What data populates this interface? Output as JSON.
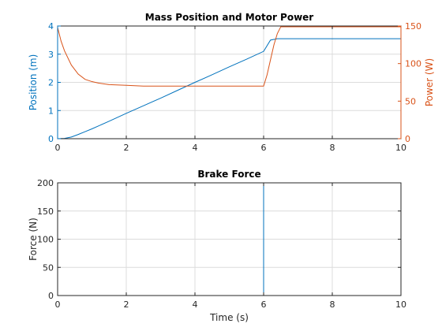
{
  "colors": {
    "blue": "#0072BD",
    "orange": "#D95319",
    "axis": "#262626",
    "grid": "#dcdcdc"
  },
  "chart_data": [
    {
      "type": "line",
      "title": "Mass Position and Motor Power",
      "xlabel": "",
      "ylabel": "Position (m)",
      "ylabel_right": "Power (W)",
      "xlim": [
        0,
        10
      ],
      "ylim": [
        0,
        4
      ],
      "ylim_right": [
        0,
        150
      ],
      "xticks": [
        "0",
        "2",
        "4",
        "6",
        "8",
        "10"
      ],
      "yticks": [
        "0",
        "1",
        "2",
        "3",
        "4"
      ],
      "yticks_right": [
        "0",
        "50",
        "100",
        "150"
      ],
      "grid": true,
      "series": [
        {
          "axis": "left",
          "color": "#0072BD",
          "x": [
            0,
            0.2,
            0.4,
            0.6,
            0.8,
            1.0,
            1.5,
            2.0,
            2.5,
            3.0,
            3.5,
            4.0,
            4.5,
            5.0,
            5.5,
            6.0,
            6.2,
            6.4,
            6.5,
            7,
            8,
            9,
            10
          ],
          "values": [
            0,
            0.01,
            0.06,
            0.15,
            0.25,
            0.35,
            0.62,
            0.9,
            1.17,
            1.44,
            1.72,
            2.0,
            2.27,
            2.55,
            2.82,
            3.1,
            3.5,
            3.55,
            3.55,
            3.55,
            3.55,
            3.55,
            3.55
          ]
        },
        {
          "axis": "right",
          "color": "#D95319",
          "x": [
            0,
            0.1,
            0.2,
            0.4,
            0.6,
            0.8,
            1.0,
            1.2,
            1.5,
            2.0,
            2.5,
            3.0,
            4.0,
            5.0,
            6.0,
            6.1,
            6.2,
            6.3,
            6.4,
            6.5,
            7,
            8,
            9,
            10
          ],
          "values": [
            148,
            130,
            117,
            98,
            86,
            79,
            76,
            74,
            72,
            71,
            70,
            70,
            70,
            70,
            70,
            85,
            105,
            125,
            140,
            149,
            149,
            149,
            149,
            149
          ]
        }
      ]
    },
    {
      "type": "line",
      "title": "Brake Force",
      "xlabel": "Time (s)",
      "ylabel": "Force (N)",
      "xlim": [
        0,
        10
      ],
      "ylim": [
        0,
        200
      ],
      "xticks": [
        "0",
        "2",
        "4",
        "6",
        "8",
        "10"
      ],
      "yticks": [
        "0",
        "50",
        "100",
        "150",
        "200"
      ],
      "grid": true,
      "series": [
        {
          "color": "#0072BD",
          "x": [
            0,
            6,
            6,
            10
          ],
          "values": [
            0,
            0,
            200,
            200
          ]
        }
      ]
    }
  ]
}
